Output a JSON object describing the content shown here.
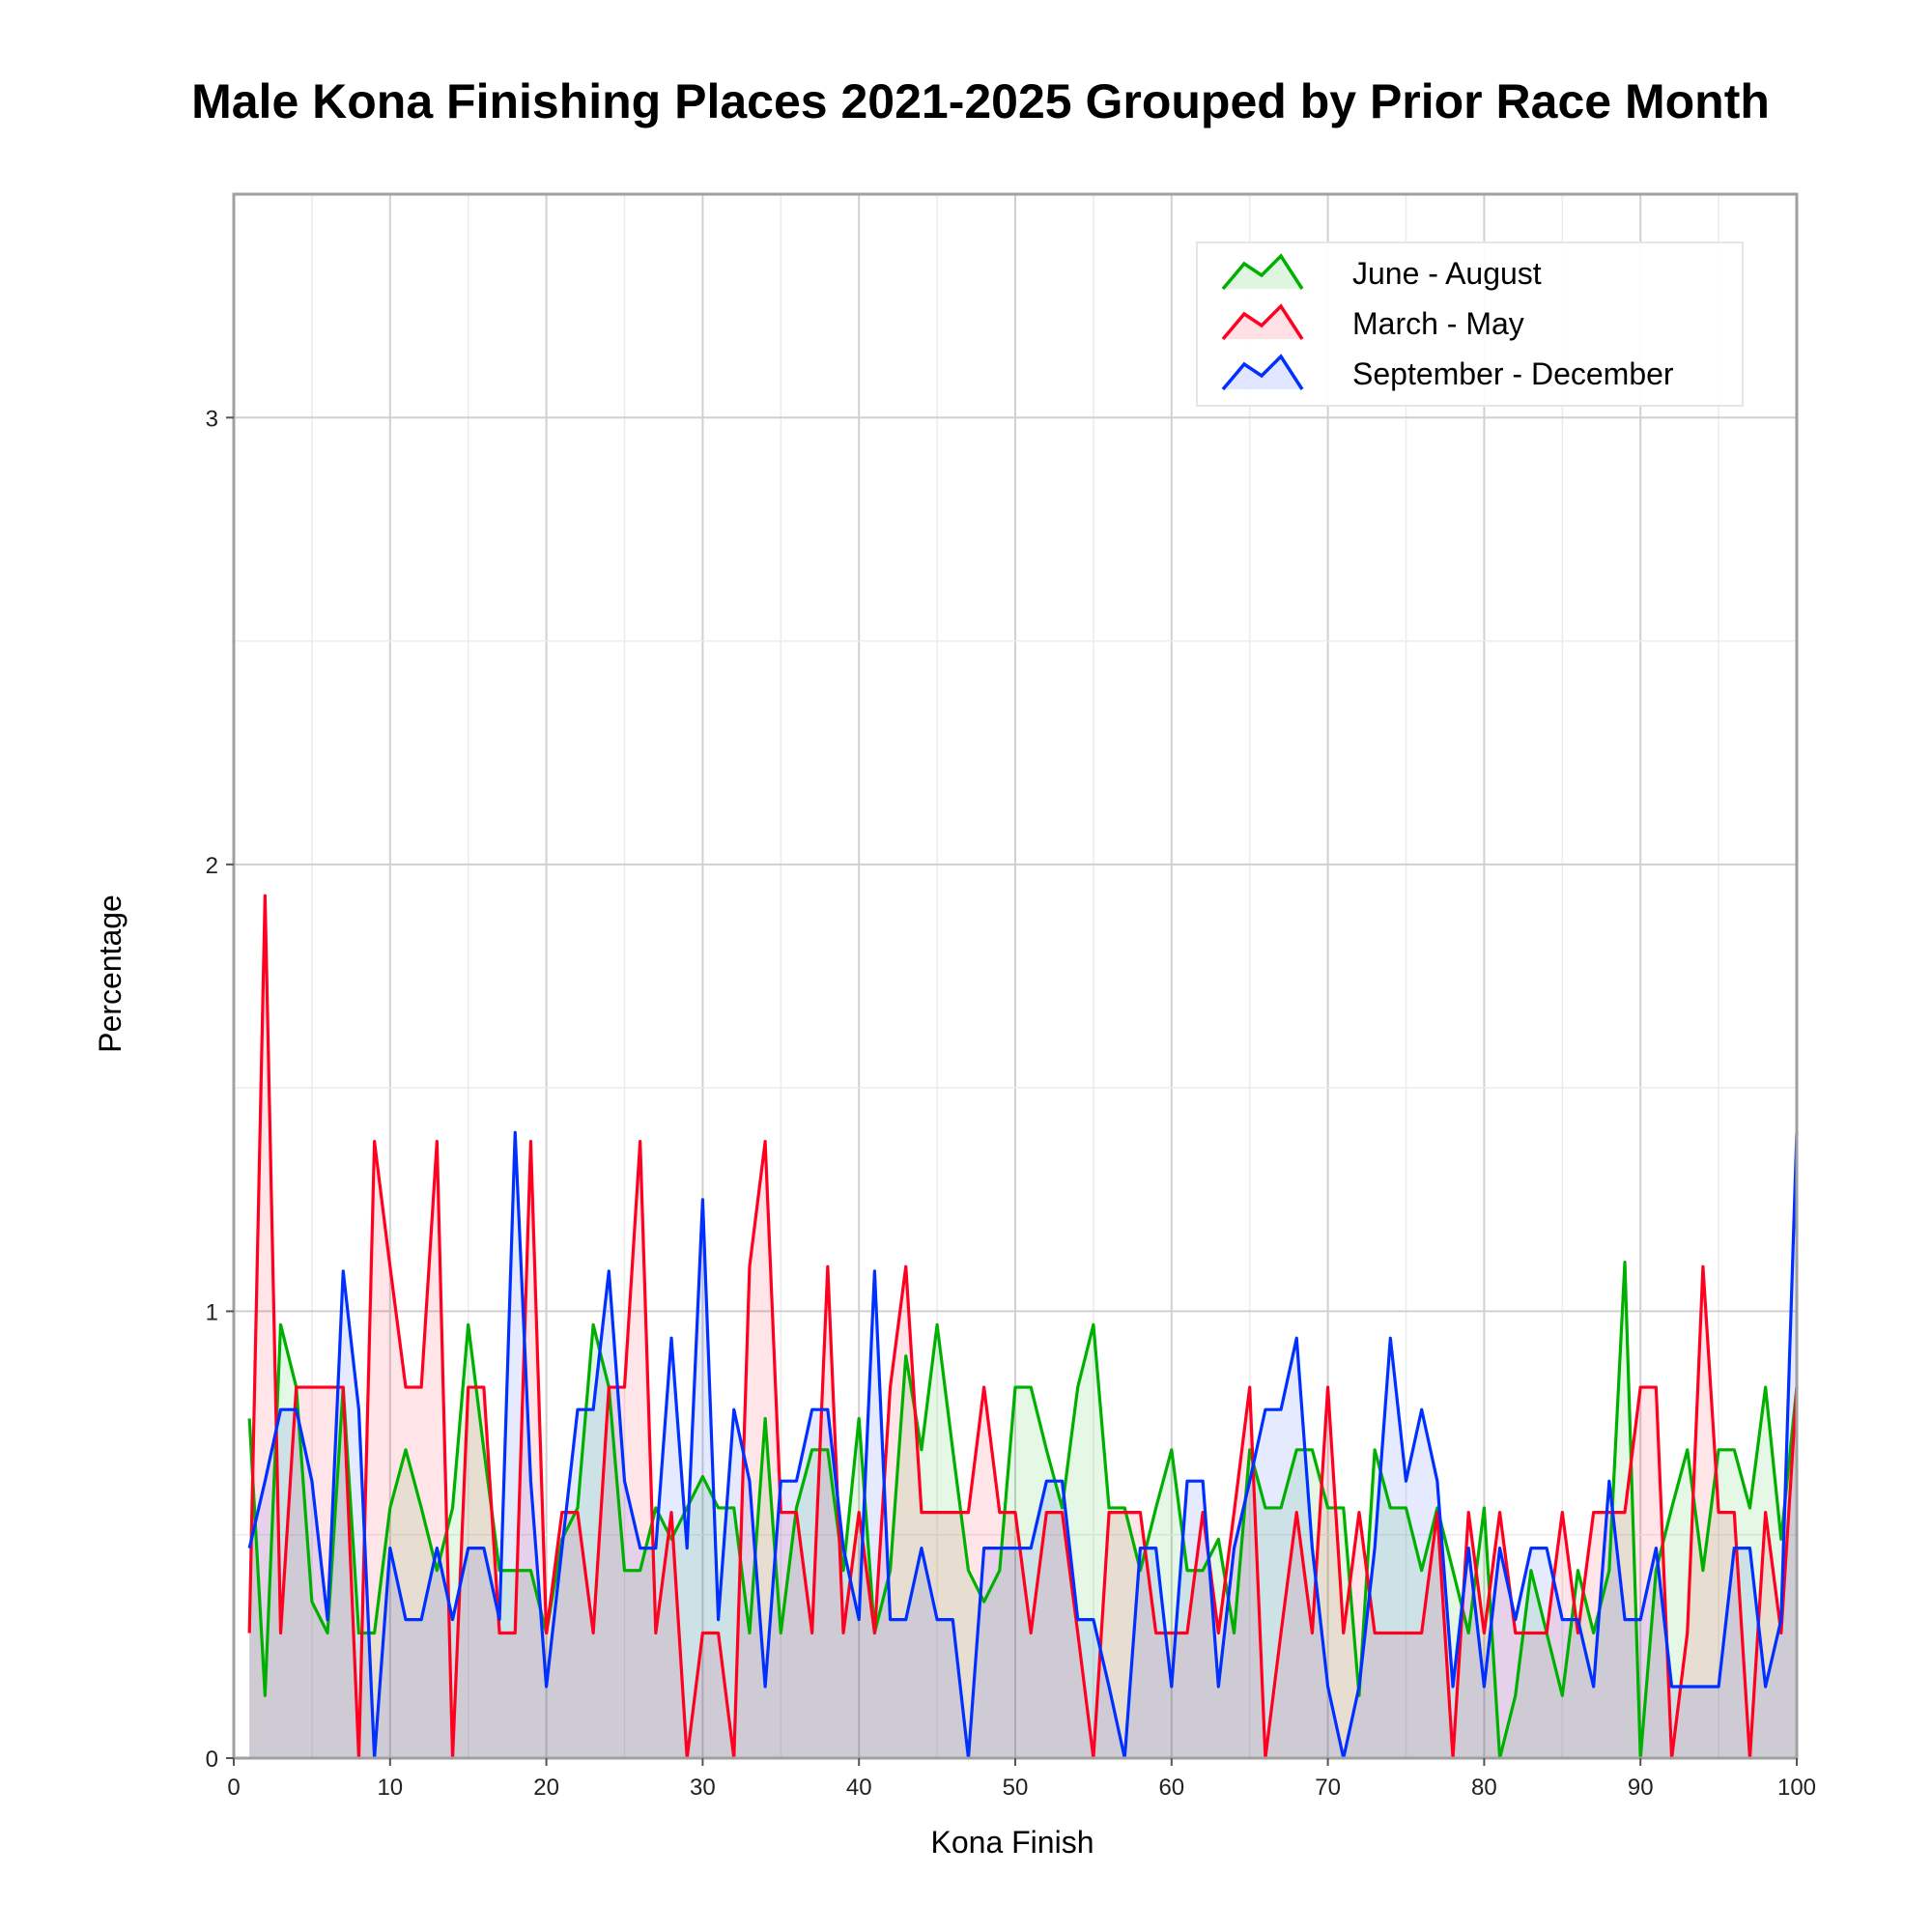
{
  "chart_data": {
    "type": "area",
    "title": "Male Kona Finishing Places 2021-2025 Grouped by Prior Race Month",
    "xlabel": "Kona Finish",
    "ylabel": "Percentage",
    "xlim": [
      0,
      100
    ],
    "ylim": [
      0,
      3.5
    ],
    "xticks": [
      "0",
      "10",
      "20",
      "30",
      "40",
      "50",
      "60",
      "70",
      "80",
      "90",
      "100"
    ],
    "yticks": [
      "0",
      "1",
      "2",
      "3"
    ],
    "grid": true,
    "legend_position": "top-right",
    "x": [
      1,
      2,
      3,
      4,
      5,
      6,
      7,
      8,
      9,
      10,
      11,
      12,
      13,
      14,
      15,
      16,
      17,
      18,
      19,
      20,
      21,
      22,
      23,
      24,
      25,
      26,
      27,
      28,
      29,
      30,
      31,
      32,
      33,
      34,
      35,
      36,
      37,
      38,
      39,
      40,
      41,
      42,
      43,
      44,
      45,
      46,
      47,
      48,
      49,
      50,
      51,
      52,
      53,
      54,
      55,
      56,
      57,
      58,
      59,
      60,
      61,
      62,
      63,
      64,
      65,
      66,
      67,
      68,
      69,
      70,
      71,
      72,
      73,
      74,
      75,
      76,
      77,
      78,
      79,
      80,
      81,
      82,
      83,
      84,
      85,
      86,
      87,
      88,
      89,
      90,
      91,
      92,
      93,
      94,
      95,
      96,
      97,
      98,
      99,
      100
    ],
    "series": [
      {
        "name": "June - August",
        "color": "#00b000",
        "values": [
          0.76,
          0.14,
          0.97,
          0.83,
          0.35,
          0.28,
          0.83,
          0.28,
          0.28,
          0.56,
          0.69,
          0.56,
          0.42,
          0.56,
          0.97,
          0.69,
          0.42,
          0.42,
          0.42,
          0.28,
          0.49,
          0.56,
          0.97,
          0.83,
          0.42,
          0.42,
          0.56,
          0.49,
          0.56,
          0.63,
          0.56,
          0.56,
          0.28,
          0.76,
          0.28,
          0.56,
          0.69,
          0.69,
          0.42,
          0.76,
          0.28,
          0.42,
          0.9,
          0.69,
          0.97,
          0.69,
          0.42,
          0.35,
          0.42,
          0.83,
          0.83,
          0.69,
          0.56,
          0.83,
          0.97,
          0.56,
          0.56,
          0.42,
          0.56,
          0.69,
          0.42,
          0.42,
          0.49,
          0.28,
          0.69,
          0.56,
          0.56,
          0.69,
          0.69,
          0.56,
          0.56,
          0.14,
          0.69,
          0.56,
          0.56,
          0.42,
          0.56,
          0.42,
          0.28,
          0.56,
          0.0,
          0.14,
          0.42,
          0.28,
          0.14,
          0.42,
          0.28,
          0.42,
          1.11,
          0.0,
          0.42,
          0.56,
          0.69,
          0.42,
          0.69,
          0.69,
          0.56,
          0.83,
          0.49,
          0.83
        ]
      },
      {
        "name": "March - May",
        "color": "#ff0020",
        "values": [
          0.28,
          1.93,
          0.28,
          0.83,
          0.83,
          0.83,
          0.83,
          0.0,
          1.38,
          1.1,
          0.83,
          0.83,
          1.38,
          0.0,
          0.83,
          0.83,
          0.28,
          0.28,
          1.38,
          0.28,
          0.55,
          0.55,
          0.28,
          0.83,
          0.83,
          1.38,
          0.28,
          0.55,
          0.0,
          0.28,
          0.28,
          0.0,
          1.1,
          1.38,
          0.55,
          0.55,
          0.28,
          1.1,
          0.28,
          0.55,
          0.28,
          0.83,
          1.1,
          0.55,
          0.55,
          0.55,
          0.55,
          0.83,
          0.55,
          0.55,
          0.28,
          0.55,
          0.55,
          0.28,
          0.0,
          0.55,
          0.55,
          0.55,
          0.28,
          0.28,
          0.28,
          0.55,
          0.28,
          0.55,
          0.83,
          0.0,
          0.28,
          0.55,
          0.28,
          0.83,
          0.28,
          0.55,
          0.28,
          0.28,
          0.28,
          0.28,
          0.55,
          0.0,
          0.55,
          0.28,
          0.55,
          0.28,
          0.28,
          0.28,
          0.55,
          0.28,
          0.55,
          0.55,
          0.55,
          0.83,
          0.83,
          0.0,
          0.28,
          1.1,
          0.55,
          0.55,
          0.0,
          0.55,
          0.28,
          0.83
        ]
      },
      {
        "name": "September - December",
        "color": "#0030ff",
        "values": [
          0.47,
          0.62,
          0.78,
          0.78,
          0.62,
          0.31,
          1.09,
          0.78,
          0.0,
          0.47,
          0.31,
          0.31,
          0.47,
          0.31,
          0.47,
          0.47,
          0.31,
          1.4,
          0.62,
          0.16,
          0.47,
          0.78,
          0.78,
          1.09,
          0.62,
          0.47,
          0.47,
          0.94,
          0.47,
          1.25,
          0.31,
          0.78,
          0.62,
          0.16,
          0.62,
          0.62,
          0.78,
          0.78,
          0.47,
          0.31,
          1.09,
          0.31,
          0.31,
          0.47,
          0.31,
          0.31,
          0.0,
          0.47,
          0.47,
          0.47,
          0.47,
          0.62,
          0.62,
          0.31,
          0.31,
          0.16,
          0.0,
          0.47,
          0.47,
          0.16,
          0.62,
          0.62,
          0.16,
          0.47,
          0.62,
          0.78,
          0.78,
          0.94,
          0.47,
          0.16,
          0.0,
          0.16,
          0.47,
          0.94,
          0.62,
          0.78,
          0.62,
          0.16,
          0.47,
          0.16,
          0.47,
          0.31,
          0.47,
          0.47,
          0.31,
          0.31,
          0.16,
          0.62,
          0.31,
          0.31,
          0.47,
          0.16,
          0.16,
          0.16,
          0.16,
          0.47,
          0.47,
          0.16,
          0.31,
          1.4
        ]
      }
    ]
  }
}
